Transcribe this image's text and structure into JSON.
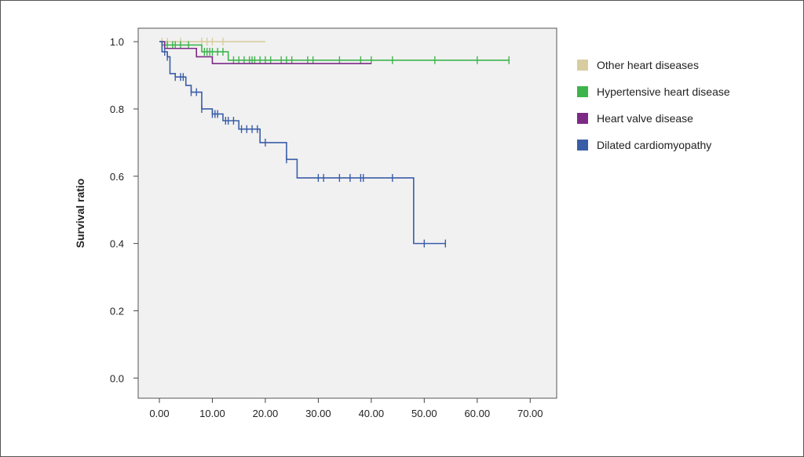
{
  "chart_data": {
    "type": "line",
    "title": "",
    "xlabel": "",
    "ylabel": "Survival ratio",
    "xlim": [
      -4,
      75
    ],
    "ylim": [
      -0.06,
      1.04
    ],
    "x_ticks": [
      "0.00",
      "10.00",
      "20.00",
      "30.00",
      "40.00",
      "50.00",
      "60.00",
      "70.00"
    ],
    "y_ticks": [
      "0.0",
      "0.2",
      "0.4",
      "0.6",
      "0.8",
      "1.0"
    ],
    "plot_background": "#f1f1f1",
    "grid": false,
    "legend_position": "right",
    "series": [
      {
        "name": "Other heart diseases",
        "color": "#d8cda0",
        "steps": [
          [
            0,
            1.0
          ],
          [
            20,
            1.0
          ]
        ],
        "censored": [
          [
            0.5,
            1.0
          ],
          [
            1.5,
            1.0
          ],
          [
            4,
            1.0
          ],
          [
            8,
            1.0
          ],
          [
            9,
            1.0
          ],
          [
            10,
            1.0
          ],
          [
            12,
            1.0
          ]
        ]
      },
      {
        "name": "Hypertensive heart disease",
        "color": "#3cb44b",
        "steps": [
          [
            0,
            1.0
          ],
          [
            0.5,
            0.99
          ],
          [
            8,
            0.97
          ],
          [
            13,
            0.945
          ],
          [
            66,
            0.945
          ]
        ],
        "censored": [
          [
            1.5,
            0.99
          ],
          [
            2.5,
            0.99
          ],
          [
            3,
            0.99
          ],
          [
            4,
            0.99
          ],
          [
            5.5,
            0.99
          ],
          [
            8.5,
            0.97
          ],
          [
            9,
            0.97
          ],
          [
            9.5,
            0.97
          ],
          [
            10,
            0.97
          ],
          [
            11,
            0.97
          ],
          [
            12,
            0.97
          ],
          [
            14,
            0.945
          ],
          [
            15,
            0.945
          ],
          [
            16,
            0.945
          ],
          [
            17,
            0.945
          ],
          [
            17.5,
            0.945
          ],
          [
            18,
            0.945
          ],
          [
            19,
            0.945
          ],
          [
            20,
            0.945
          ],
          [
            21,
            0.945
          ],
          [
            23,
            0.945
          ],
          [
            24,
            0.945
          ],
          [
            25,
            0.945
          ],
          [
            28,
            0.945
          ],
          [
            29,
            0.945
          ],
          [
            34,
            0.945
          ],
          [
            38,
            0.945
          ],
          [
            40,
            0.945
          ],
          [
            44,
            0.945
          ],
          [
            52,
            0.945
          ],
          [
            60,
            0.945
          ],
          [
            66,
            0.945
          ]
        ]
      },
      {
        "name": "Heart valve disease",
        "color": "#7d2a86",
        "steps": [
          [
            0,
            1.0
          ],
          [
            1,
            0.98
          ],
          [
            7,
            0.955
          ],
          [
            10,
            0.935
          ],
          [
            40,
            0.935
          ]
        ],
        "censored": []
      },
      {
        "name": "Dilated cardiomyopathy",
        "color": "#3a5da8",
        "steps": [
          [
            0,
            1.0
          ],
          [
            0.5,
            0.97
          ],
          [
            1.5,
            0.955
          ],
          [
            2,
            0.905
          ],
          [
            3,
            0.895
          ],
          [
            5,
            0.87
          ],
          [
            6,
            0.85
          ],
          [
            8,
            0.8
          ],
          [
            10,
            0.785
          ],
          [
            12,
            0.765
          ],
          [
            15,
            0.74
          ],
          [
            19,
            0.7
          ],
          [
            24,
            0.65
          ],
          [
            26,
            0.595
          ],
          [
            48,
            0.4
          ],
          [
            54,
            0.4
          ]
        ],
        "censored": [
          [
            0.5,
            0.99
          ],
          [
            1,
            0.97
          ],
          [
            1.5,
            0.955
          ],
          [
            3,
            0.895
          ],
          [
            4,
            0.895
          ],
          [
            4.5,
            0.895
          ],
          [
            6,
            0.85
          ],
          [
            7,
            0.85
          ],
          [
            8,
            0.8
          ],
          [
            10,
            0.785
          ],
          [
            10.5,
            0.785
          ],
          [
            11,
            0.785
          ],
          [
            12.5,
            0.765
          ],
          [
            13,
            0.765
          ],
          [
            14,
            0.765
          ],
          [
            15.5,
            0.74
          ],
          [
            16.5,
            0.74
          ],
          [
            17.5,
            0.74
          ],
          [
            18.5,
            0.74
          ],
          [
            20,
            0.7
          ],
          [
            24,
            0.65
          ],
          [
            30,
            0.595
          ],
          [
            31,
            0.595
          ],
          [
            34,
            0.595
          ],
          [
            36,
            0.595
          ],
          [
            38,
            0.595
          ],
          [
            38.5,
            0.595
          ],
          [
            44,
            0.595
          ],
          [
            50,
            0.4
          ],
          [
            54,
            0.4
          ]
        ]
      }
    ]
  }
}
